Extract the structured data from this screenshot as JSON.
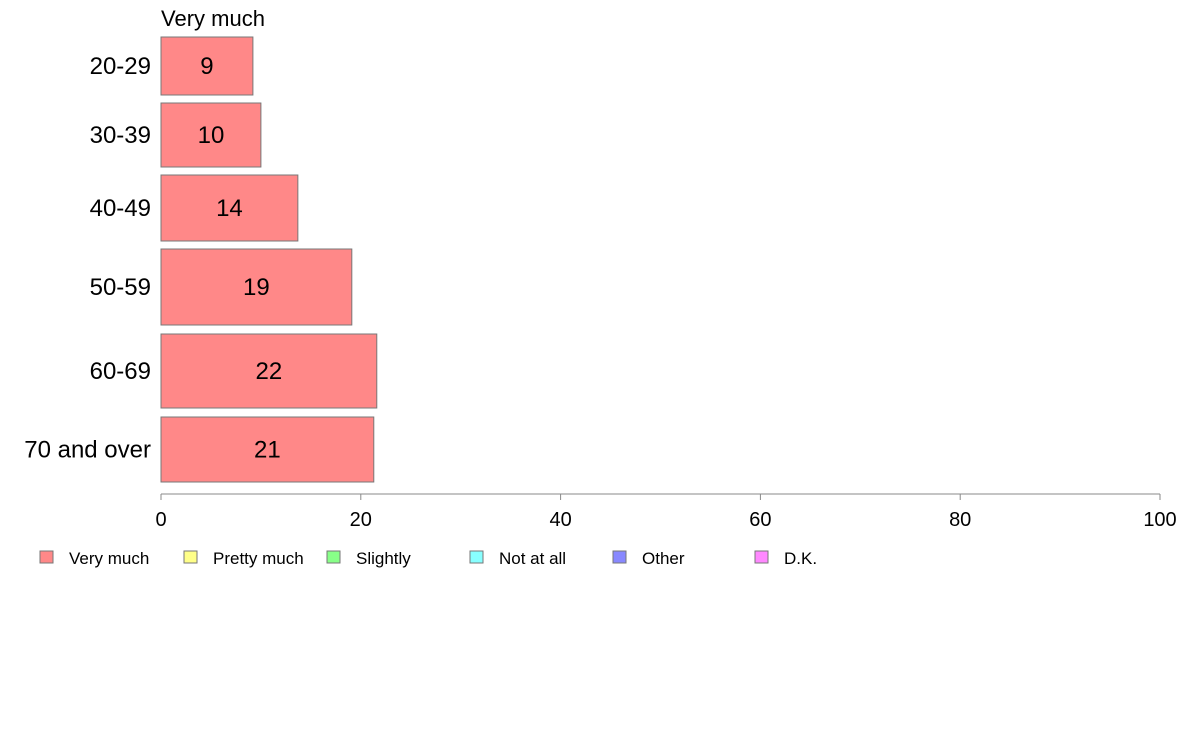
{
  "chart_data": {
    "type": "bar",
    "orientation": "horizontal",
    "title": "Very much",
    "categories": [
      "20-29",
      "30-39",
      "40-49",
      "50-59",
      "60-69",
      "70 and over"
    ],
    "series": [
      {
        "name": "Very much",
        "color": "#ff8888",
        "values": [
          9.2,
          10,
          13.7,
          19.1,
          21.6,
          21.3
        ],
        "labels": [
          "9",
          "10",
          "14",
          "19",
          "22",
          "21"
        ]
      }
    ],
    "xlim": [
      0,
      100
    ],
    "xticks": [
      "0",
      "20",
      "40",
      "60",
      "80",
      "100"
    ],
    "grid": false,
    "legend_position": "bottom",
    "legend": [
      {
        "label": "Very much",
        "color": "#ff8888"
      },
      {
        "label": "Pretty much",
        "color": "#ffff88"
      },
      {
        "label": "Slightly",
        "color": "#88ff88"
      },
      {
        "label": "Not at all",
        "color": "#88ffff"
      },
      {
        "label": "Other",
        "color": "#8888ff"
      },
      {
        "label": "D.K.",
        "color": "#ff88ff"
      }
    ]
  }
}
